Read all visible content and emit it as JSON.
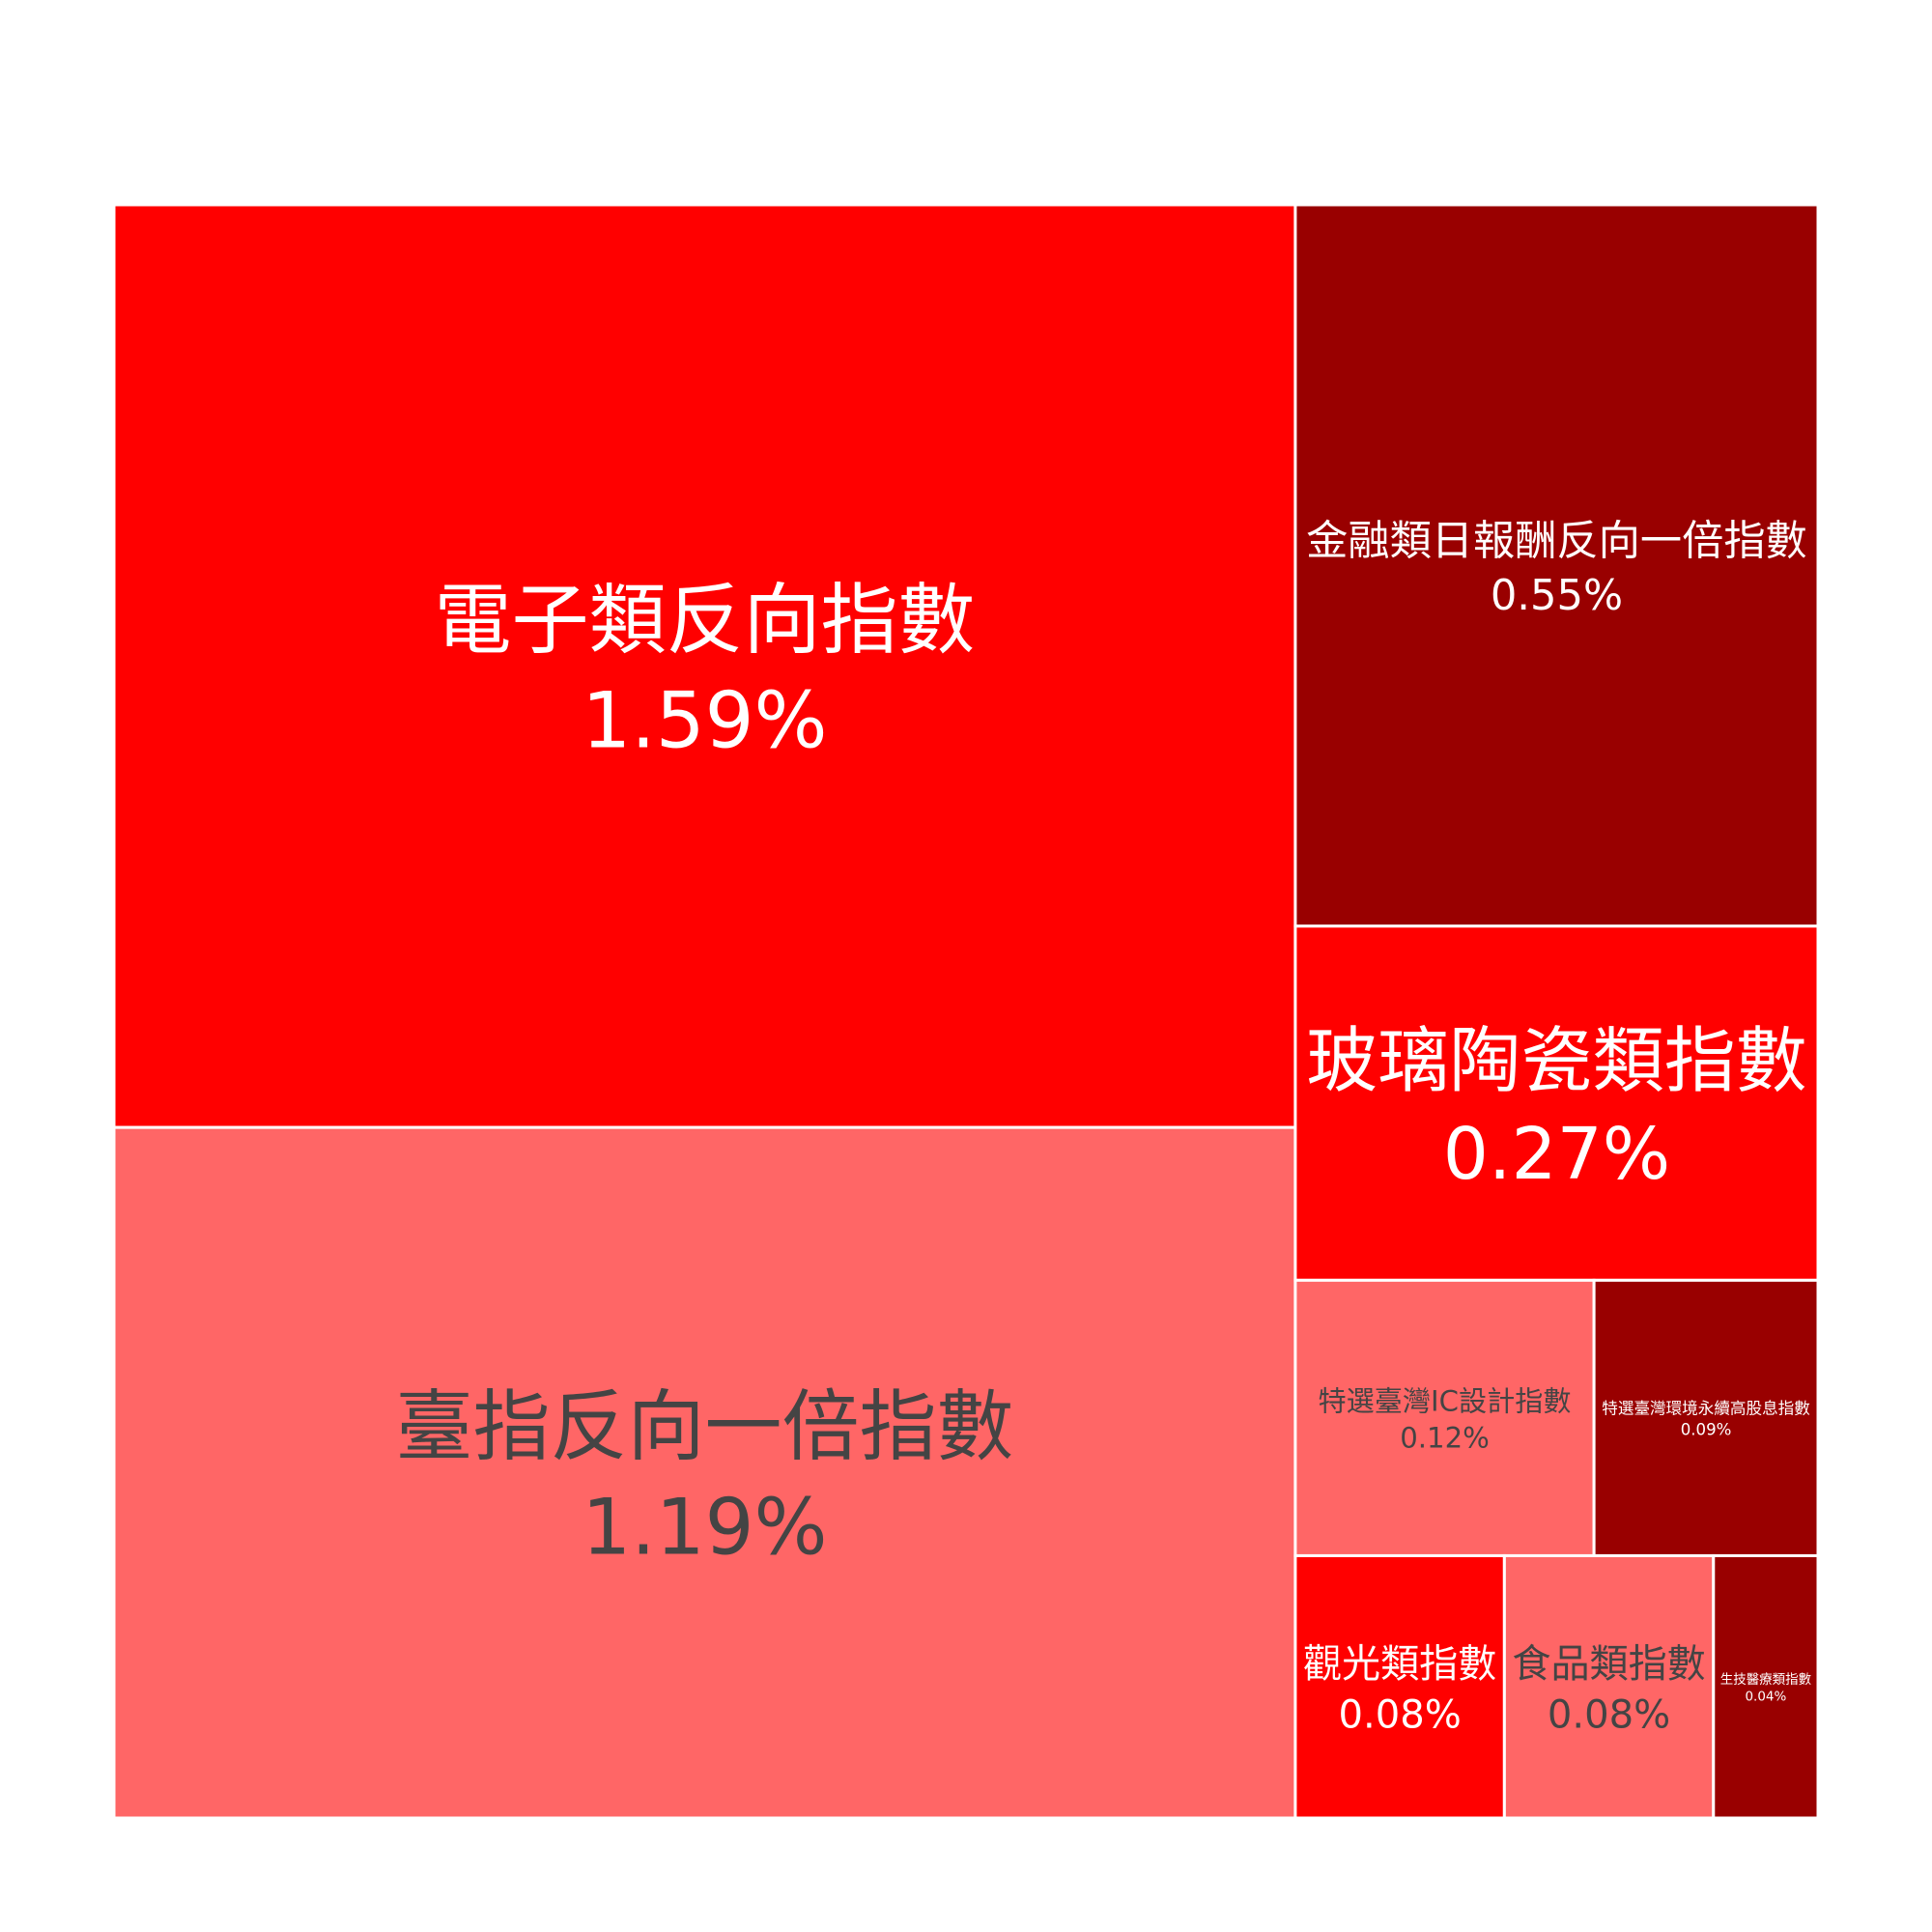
{
  "chart_data": {
    "type": "treemap",
    "title": "",
    "value_format": "percent",
    "colors": {
      "bright_red": "#ff0000",
      "dark_red": "#990000",
      "light_red": "#ff6666",
      "text_light": "#ffffff",
      "text_dark": "#444444",
      "border": "#ffffff"
    },
    "items": [
      {
        "name": "電子類反向指數",
        "value": 1.59,
        "label": "1.59%",
        "color": "#ff0000",
        "text_color": "#ffffff"
      },
      {
        "name": "臺指反向一倍指數",
        "value": 1.19,
        "label": "1.19%",
        "color": "#ff6666",
        "text_color": "#444444"
      },
      {
        "name": "金融類日報酬反向一倍指數",
        "value": 0.55,
        "label": "0.55%",
        "color": "#990000",
        "text_color": "#ffffff"
      },
      {
        "name": "玻璃陶瓷類指數",
        "value": 0.27,
        "label": "0.27%",
        "color": "#ff0000",
        "text_color": "#ffffff"
      },
      {
        "name": "特選臺灣IC設計指數",
        "value": 0.12,
        "label": "0.12%",
        "color": "#ff6666",
        "text_color": "#444444"
      },
      {
        "name": "特選臺灣環境永續高股息指數",
        "value": 0.09,
        "label": "0.09%",
        "color": "#990000",
        "text_color": "#ffffff"
      },
      {
        "name": "觀光類指數",
        "value": 0.08,
        "label": "0.08%",
        "color": "#ff0000",
        "text_color": "#ffffff"
      },
      {
        "name": "食品類指數",
        "value": 0.08,
        "label": "0.08%",
        "color": "#ff6666",
        "text_color": "#444444"
      },
      {
        "name": "生技醫療類指數",
        "value": 0.04,
        "label": "0.04%",
        "color": "#990000",
        "text_color": "#ffffff"
      }
    ]
  }
}
